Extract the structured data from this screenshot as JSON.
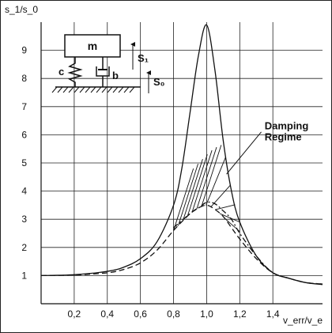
{
  "chart_data": {
    "type": "line",
    "title": "",
    "xlabel": "v_err/v_e",
    "ylabel": "s_1/s_0",
    "xlim": [
      0,
      1.7
    ],
    "ylim": [
      0,
      10
    ],
    "grid": true,
    "x_ticks": [
      "0,2",
      "0,4",
      "0,6",
      "0,8",
      "1,0",
      "1,2",
      "1,4"
    ],
    "y_ticks": [
      "1",
      "2",
      "3",
      "4",
      "5",
      "6",
      "7",
      "8",
      "9"
    ],
    "annotations": [
      {
        "text": "Damping",
        "anchor": [
          1.35,
          6.2
        ]
      },
      {
        "text": "Regime",
        "anchor": [
          1.35,
          5.8
        ]
      }
    ],
    "inset_labels": {
      "mass": "m",
      "spring": "c",
      "damper": "b",
      "s1": "S₁",
      "s0": "S₀"
    },
    "series": [
      {
        "style": "solid",
        "x": [
          0,
          0.2,
          0.4,
          0.5,
          0.6,
          0.7,
          0.8,
          0.85,
          0.9,
          0.95,
          1.0,
          1.05,
          1.1,
          1.15,
          1.2,
          1.3,
          1.4,
          1.5,
          1.6,
          1.7
        ],
        "y": [
          1,
          1.03,
          1.15,
          1.3,
          1.6,
          2.2,
          3.5,
          4.8,
          6.8,
          8.8,
          9.9,
          8.3,
          5.8,
          4.0,
          2.9,
          1.7,
          1.1,
          0.9,
          0.75,
          0.68
        ]
      },
      {
        "style": "dashed",
        "x": [
          0,
          0.2,
          0.4,
          0.5,
          0.6,
          0.7,
          0.8,
          0.9,
          0.95,
          1.0,
          1.05,
          1.1,
          1.15,
          1.2,
          1.3,
          1.4,
          1.5,
          1.6,
          1.7
        ],
        "y": [
          1,
          1.02,
          1.1,
          1.22,
          1.45,
          1.9,
          2.6,
          3.2,
          3.4,
          3.5,
          3.35,
          3.1,
          2.7,
          2.3,
          1.6,
          1.1,
          0.9,
          0.75,
          0.7
        ]
      },
      {
        "style": "dashdot",
        "x": [
          0.8,
          0.9,
          0.95,
          1.0,
          1.05,
          1.1,
          1.15,
          1.2,
          1.3,
          1.4,
          1.5,
          1.6,
          1.7
        ],
        "y": [
          2.7,
          3.2,
          3.4,
          3.6,
          3.55,
          3.3,
          3.0,
          2.5,
          1.7,
          1.1,
          0.9,
          0.75,
          0.7
        ]
      }
    ],
    "hatch_region": {
      "x_from": 0.8,
      "x_to": 1.2
    }
  }
}
